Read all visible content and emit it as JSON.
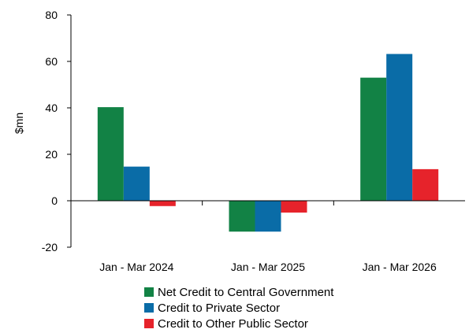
{
  "chart_data": {
    "type": "bar",
    "title": "",
    "xlabel": "",
    "ylabel": "$mn",
    "ylim": [
      -20,
      80
    ],
    "yticks": [
      "-20",
      "0",
      "20",
      "40",
      "60",
      "80"
    ],
    "categories": [
      "Jan - Mar 2024",
      "Jan - Mar 2025",
      "Jan - Mar 2026"
    ],
    "series": [
      {
        "name": "Net Credit to Central Government",
        "color": "#128245",
        "values": [
          40.3,
          -13.3,
          53.0
        ]
      },
      {
        "name": "Credit to Private Sector",
        "color": "#0a6ca7",
        "values": [
          14.7,
          -13.3,
          63.2
        ]
      },
      {
        "name": "Credit to Other Public Sector",
        "color": "#e6232b",
        "values": [
          -2.3,
          -5.1,
          13.6
        ]
      }
    ],
    "legend_position": "bottom",
    "grid": false
  }
}
